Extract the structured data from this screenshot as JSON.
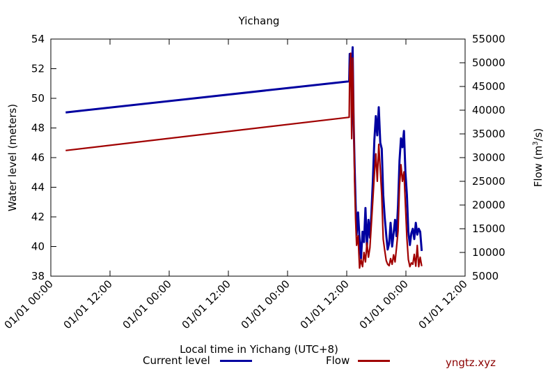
{
  "chart_data": {
    "type": "line",
    "title": "Yichang",
    "xlabel": "Local time in Yichang (UTC+8)",
    "ylabel": "Water level (meters)",
    "y2label_base": "Flow (m",
    "y2label_sup": "3",
    "y2label_end": "/s)",
    "x_ticks": [
      "01/01 00:00",
      "01/01 12:00",
      "01/01 00:00",
      "01/01 12:00",
      "01/01 00:00",
      "01/01 12:00",
      "01/01 00:00",
      "01/01 12:00"
    ],
    "y_ticks": [
      "38",
      "40",
      "42",
      "44",
      "46",
      "48",
      "50",
      "52",
      "54"
    ],
    "y2_ticks": [
      "5000",
      "10000",
      "15000",
      "20000",
      "25000",
      "30000",
      "35000",
      "40000",
      "45000",
      "50000",
      "55000"
    ],
    "xlim_hours": [
      0,
      84
    ],
    "ylim": [
      38,
      54
    ],
    "y2lim": [
      5000,
      55000
    ],
    "grid": false,
    "legend_position": "bottom",
    "series": [
      {
        "name": "Current level",
        "axis": "left",
        "color": "#0000a0",
        "x_hours": [
          3.0,
          60.5,
          60.6,
          60.8,
          61.0,
          61.2,
          61.4,
          61.6,
          61.8,
          62.0,
          62.3,
          62.6,
          62.9,
          63.2,
          63.5,
          63.8,
          64.1,
          64.4,
          64.7,
          65.0,
          65.3,
          65.6,
          65.9,
          66.2,
          66.5,
          66.8,
          67.1,
          67.4,
          67.7,
          68.0,
          68.3,
          68.6,
          68.9,
          69.2,
          69.5,
          69.8,
          70.1,
          70.4,
          70.7,
          71.0,
          71.3,
          71.6,
          71.9,
          72.2,
          72.5,
          72.8,
          73.1,
          73.4,
          73.7,
          74.0,
          74.3,
          74.6,
          74.9,
          75.2
        ],
        "values": [
          49.05,
          51.15,
          53.0,
          52.5,
          51.6,
          53.45,
          48.5,
          45.5,
          43.0,
          40.8,
          42.3,
          40.5,
          39.2,
          41.0,
          40.3,
          42.6,
          40.0,
          41.8,
          40.6,
          42.2,
          44.4,
          47.2,
          48.8,
          47.5,
          49.4,
          47.0,
          46.6,
          43.5,
          42.0,
          40.8,
          39.8,
          40.2,
          41.6,
          40.0,
          40.9,
          41.8,
          40.7,
          42.8,
          45.8,
          47.3,
          46.7,
          47.8,
          45.0,
          43.5,
          41.0,
          40.1,
          40.9,
          41.2,
          40.5,
          41.6,
          40.8,
          41.2,
          41.0,
          39.7
        ]
      },
      {
        "name": "Flow",
        "axis": "right",
        "color": "#a00000",
        "x_hours": [
          3.0,
          60.5,
          60.6,
          60.8,
          61.0,
          61.2,
          61.4,
          61.6,
          61.8,
          62.0,
          62.3,
          62.6,
          62.9,
          63.2,
          63.5,
          63.8,
          64.1,
          64.4,
          64.7,
          65.0,
          65.3,
          65.6,
          65.9,
          66.2,
          66.5,
          66.8,
          67.1,
          67.4,
          67.7,
          68.0,
          68.3,
          68.6,
          68.9,
          69.2,
          69.5,
          69.8,
          70.1,
          70.4,
          70.7,
          71.0,
          71.3,
          71.6,
          71.9,
          72.2,
          72.5,
          72.8,
          73.1,
          73.4,
          73.7,
          74.0,
          74.3,
          74.6,
          74.9,
          75.2
        ],
        "values": [
          31500,
          38500,
          48500,
          52000,
          34000,
          51000,
          39500,
          25000,
          17000,
          11500,
          13500,
          6700,
          8500,
          7000,
          10000,
          8000,
          12000,
          9000,
          11000,
          16000,
          21000,
          26500,
          30800,
          25000,
          32800,
          27500,
          22000,
          12800,
          10500,
          8300,
          7500,
          7200,
          8700,
          7500,
          9500,
          8000,
          11000,
          14500,
          24000,
          28500,
          25000,
          27000,
          20000,
          13000,
          8500,
          7000,
          7800,
          7500,
          9600,
          7100,
          11500,
          7000,
          9000,
          7100
        ]
      }
    ],
    "watermark": "yngtz.xyz"
  }
}
